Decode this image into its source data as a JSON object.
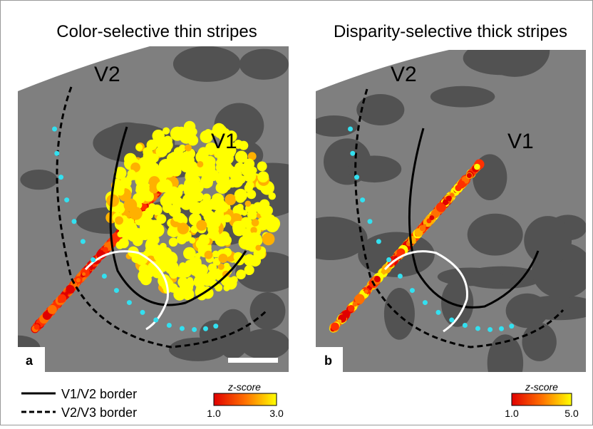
{
  "panels": [
    {
      "title": "Color-selective thin stripes",
      "letter": "a",
      "v1": "V1",
      "v2": "V2",
      "colorbar": {
        "label": "z-score",
        "min": "1.0",
        "max": "3.0"
      }
    },
    {
      "title": "Disparity-selective thick stripes",
      "letter": "b",
      "v1": "V1",
      "v2": "V2",
      "colorbar": {
        "label": "z-score",
        "min": "1.0",
        "max": "5.0"
      }
    }
  ],
  "legend": {
    "solid": "V1/V2 border",
    "dashed": "V2/V3 border"
  }
}
